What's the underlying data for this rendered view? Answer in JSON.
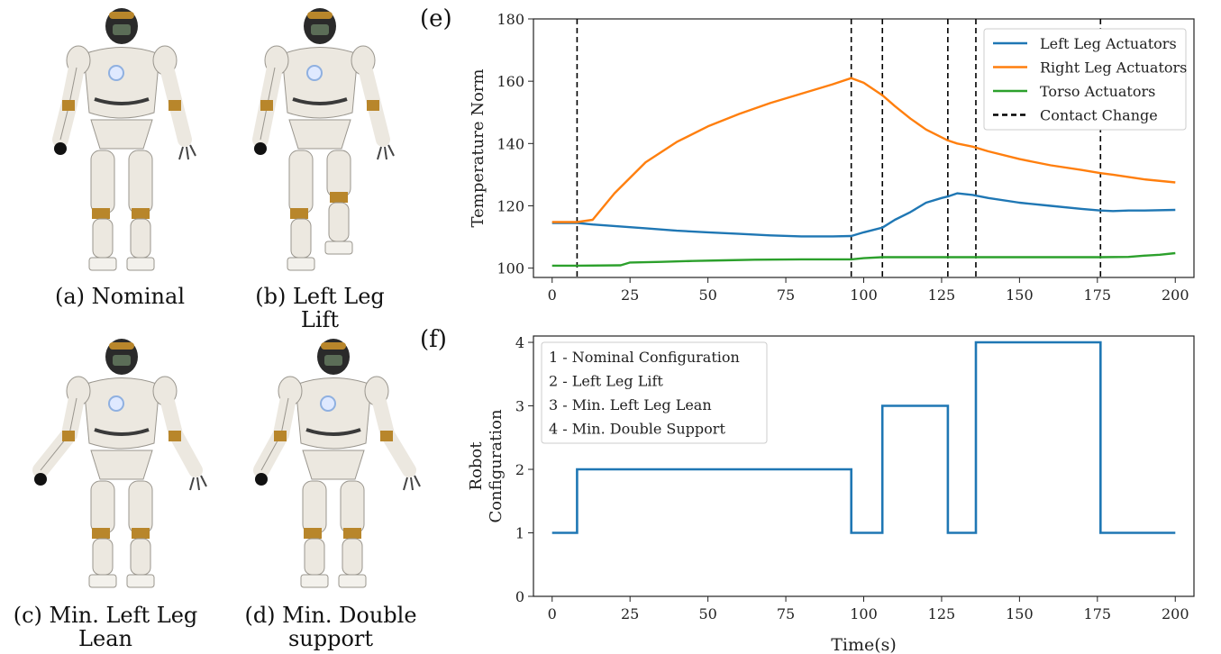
{
  "panels": {
    "a": {
      "caption_line1": "(a) Nominal",
      "caption_line2": ""
    },
    "b": {
      "caption_line1": "(b) Left Leg",
      "caption_line2": "Lift"
    },
    "c": {
      "caption_line1": "(c) Min. Left Leg",
      "caption_line2": "Lean"
    },
    "d": {
      "caption_line1": "(d) Min. Double",
      "caption_line2": "support"
    },
    "e_tag": "(e)",
    "f_tag": "(f)"
  },
  "colors": {
    "left_leg": "#1f77b4",
    "right_leg": "#ff7f0e",
    "torso": "#2ca02c",
    "contact": "#000000",
    "robot_body": "#ece8e0",
    "robot_joint": "#b8862b"
  },
  "chart_data": [
    {
      "type": "line",
      "ylabel": "Temperature Norm",
      "xlim": [
        -6,
        206
      ],
      "ylim": [
        97,
        180
      ],
      "xticks": [
        0,
        25,
        50,
        75,
        100,
        125,
        150,
        175,
        200
      ],
      "yticks": [
        100,
        120,
        140,
        160,
        180
      ],
      "legend": "top-right",
      "series": [
        {
          "name": "Left Leg Actuators",
          "color": "#1f77b4",
          "x": [
            0,
            8,
            13,
            20,
            30,
            40,
            50,
            60,
            70,
            80,
            90,
            96,
            100,
            106,
            110,
            115,
            120,
            125,
            127,
            130,
            135,
            140,
            150,
            160,
            170,
            176,
            180,
            185,
            190,
            200
          ],
          "y": [
            114.5,
            114.5,
            114,
            113.5,
            112.8,
            112,
            111.5,
            111,
            110.5,
            110.2,
            110.2,
            110.3,
            111.5,
            113,
            115.5,
            118,
            121,
            122.5,
            123,
            124,
            123.5,
            122.5,
            121,
            120,
            119,
            118.5,
            118.3,
            118.5,
            118.5,
            118.7
          ]
        },
        {
          "name": "Right Leg Actuators",
          "color": "#ff7f0e",
          "x": [
            0,
            8,
            13,
            20,
            30,
            40,
            50,
            60,
            70,
            80,
            90,
            96,
            100,
            106,
            110,
            115,
            120,
            125,
            127,
            130,
            135,
            140,
            150,
            160,
            170,
            176,
            180,
            190,
            200
          ],
          "y": [
            114.8,
            114.8,
            115.5,
            124,
            134,
            140.5,
            145.5,
            149.5,
            153,
            156,
            159,
            161,
            159.5,
            155.5,
            152,
            148,
            144.5,
            142,
            141,
            140,
            139,
            137.5,
            135,
            133,
            131.5,
            130.5,
            130,
            128.5,
            127.5
          ]
        },
        {
          "name": "Torso Actuators",
          "color": "#2ca02c",
          "x": [
            0,
            8,
            22,
            25,
            35,
            45,
            55,
            65,
            80,
            96,
            100,
            106,
            120,
            140,
            160,
            176,
            185,
            190,
            195,
            200
          ],
          "y": [
            100.8,
            100.8,
            100.9,
            101.8,
            102,
            102.3,
            102.5,
            102.7,
            102.8,
            102.8,
            103.2,
            103.5,
            103.5,
            103.5,
            103.5,
            103.5,
            103.6,
            104,
            104.3,
            104.8
          ]
        }
      ],
      "contact_change": {
        "name": "Contact Change",
        "x": [
          8,
          96,
          106,
          127,
          136,
          176
        ]
      }
    },
    {
      "type": "line",
      "xlabel": "Time(s)",
      "ylabel_line1": "Robot",
      "ylabel_line2": "Configuration",
      "xlim": [
        -6,
        206
      ],
      "ylim": [
        0,
        4.1
      ],
      "xticks": [
        0,
        25,
        50,
        75,
        100,
        125,
        150,
        175,
        200
      ],
      "yticks": [
        0,
        1,
        2,
        3,
        4
      ],
      "legend": "top-left",
      "legend_entries": [
        "1 - Nominal Configuration",
        "2 - Left Leg Lift",
        "3 - Min. Left Leg Lean",
        "4 - Min. Double Support"
      ],
      "series": [
        {
          "color": "#1f77b4",
          "x": [
            0,
            8,
            8,
            96,
            96,
            106,
            106,
            127,
            127,
            136,
            136,
            176,
            176,
            200
          ],
          "y": [
            1,
            1,
            2,
            2,
            1,
            1,
            3,
            3,
            1,
            1,
            4,
            4,
            1,
            1
          ]
        }
      ]
    }
  ]
}
